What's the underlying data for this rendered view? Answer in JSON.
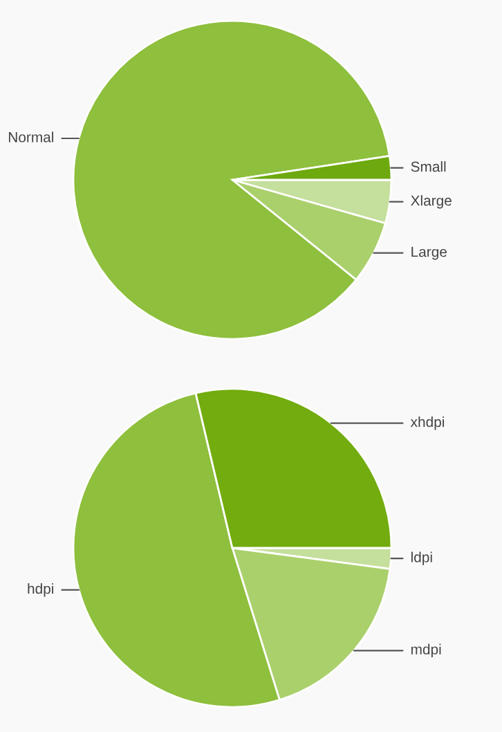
{
  "chart_data": [
    {
      "type": "pie",
      "categories": [
        "Xlarge",
        "Large",
        "Normal",
        "Small"
      ],
      "values": [
        4.4,
        6.4,
        86.8,
        2.4
      ],
      "colors": [
        "#c5df9c",
        "#aad06c",
        "#8ebf3d",
        "#6ea90f"
      ]
    },
    {
      "type": "pie",
      "categories": [
        "ldpi",
        "mdpi",
        "hdpi",
        "xhdpi"
      ],
      "values": [
        2.1,
        18.1,
        51.1,
        28.7
      ],
      "colors": [
        "#c5df9c",
        "#aad06c",
        "#8ebf3d",
        "#72ac0e"
      ]
    }
  ]
}
